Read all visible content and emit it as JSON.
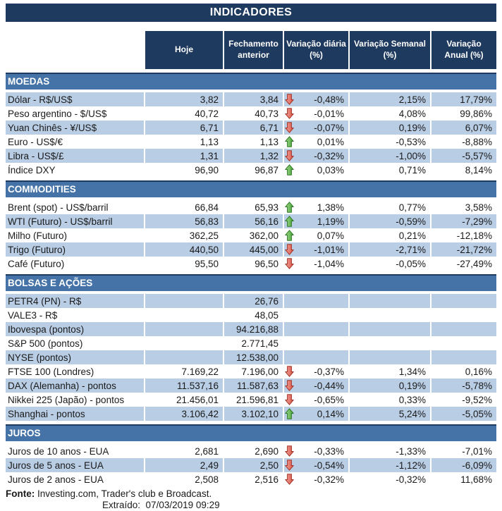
{
  "title": "INDICADORES",
  "header": {
    "labels": [
      {
        "lines": [
          "Hoje"
        ]
      },
      {
        "lines": [
          "Fechamento",
          "anterior"
        ]
      },
      {
        "lines": [
          "Variação diária",
          "(%)"
        ]
      },
      {
        "lines": [
          "Variação Semanal",
          "(%)"
        ]
      },
      {
        "lines": [
          "Variação",
          "Anual (%)"
        ]
      }
    ]
  },
  "colors": {
    "navy": "#1F3A5F",
    "section_blue": "#4573A7",
    "row_shade": "#B9CDE5",
    "text": "#1A1A1A",
    "arrow_up_light": "#A9DB92",
    "arrow_up_dark": "#3FA032",
    "arrow_up_stroke": "#2E7A26",
    "arrow_down_light": "#F2A79B",
    "arrow_down_dark": "#D85045",
    "arrow_down_stroke": "#A23528"
  },
  "sections": [
    {
      "id": "moedas",
      "name": "MOEDAS",
      "rows": [
        {
          "label": "Dólar - R$/US$",
          "hoje": "3,82",
          "fechamento": "3,84",
          "arrow": "down",
          "diaria": "-0,48%",
          "semanal": "2,15%",
          "anual": "17,79%",
          "shaded": true
        },
        {
          "label": "Peso argentino - $/US$",
          "hoje": "40,72",
          "fechamento": "40,73",
          "arrow": "down",
          "diaria": "-0,01%",
          "semanal": "4,08%",
          "anual": "99,86%",
          "shaded": false
        },
        {
          "label": "Yuan Chinês - ¥/US$",
          "hoje": "6,71",
          "fechamento": "6,71",
          "arrow": "down",
          "diaria": "-0,07%",
          "semanal": "0,19%",
          "anual": "6,07%",
          "shaded": true
        },
        {
          "label": "Euro - US$/€",
          "hoje": "1,13",
          "fechamento": "1,13",
          "arrow": "up",
          "diaria": "0,01%",
          "semanal": "-0,53%",
          "anual": "-8,88%",
          "shaded": false
        },
        {
          "label": "Libra - US$/£",
          "hoje": "1,31",
          "fechamento": "1,32",
          "arrow": "down",
          "diaria": "-0,32%",
          "semanal": "-1,00%",
          "anual": "-5,57%",
          "shaded": true
        },
        {
          "label": "Índice DXY",
          "hoje": "96,90",
          "fechamento": "96,87",
          "arrow": "up",
          "diaria": "0,03%",
          "semanal": "0,71%",
          "anual": "8,14%",
          "shaded": false
        }
      ]
    },
    {
      "id": "commodities",
      "name": "COMMODITIES",
      "rows": [
        {
          "label": "Brent (spot) - US$/barril",
          "hoje": "66,84",
          "fechamento": "65,93",
          "arrow": "up",
          "diaria": "1,38%",
          "semanal": "0,77%",
          "anual": "3,58%",
          "shaded": false
        },
        {
          "label": "WTI (Futuro) - US$/barril",
          "hoje": "56,83",
          "fechamento": "56,16",
          "arrow": "up",
          "diaria": "1,19%",
          "semanal": "-0,59%",
          "anual": "-7,29%",
          "shaded": true
        },
        {
          "label": "Milho (Futuro)",
          "hoje": "362,25",
          "fechamento": "362,00",
          "arrow": "up",
          "diaria": "0,07%",
          "semanal": "0,21%",
          "anual": "-12,18%",
          "shaded": false
        },
        {
          "label": "Trigo (Futuro)",
          "hoje": "440,50",
          "fechamento": "445,00",
          "arrow": "down",
          "diaria": "-1,01%",
          "semanal": "-2,71%",
          "anual": "-21,72%",
          "shaded": true
        },
        {
          "label": "Café (Futuro)",
          "hoje": "95,50",
          "fechamento": "96,50",
          "arrow": "down",
          "diaria": "-1,04%",
          "semanal": "-0,05%",
          "anual": "-27,49%",
          "shaded": false
        }
      ]
    },
    {
      "id": "bolsas-e-acoes",
      "name": "BOLSAS E AÇÕES",
      "rows": [
        {
          "label": "PETR4 (PN) - R$",
          "hoje": "",
          "fechamento": "26,76",
          "arrow": null,
          "diaria": "",
          "semanal": "",
          "anual": "",
          "shaded": true
        },
        {
          "label": "VALE3 - R$",
          "hoje": "",
          "fechamento": "48,05",
          "arrow": null,
          "diaria": "",
          "semanal": "",
          "anual": "",
          "shaded": false
        },
        {
          "label": "Ibovespa (pontos)",
          "hoje": "",
          "fechamento": "94.216,88",
          "arrow": null,
          "diaria": "",
          "semanal": "",
          "anual": "",
          "shaded": true
        },
        {
          "label": "S&P 500 (pontos)",
          "hoje": "",
          "fechamento": "2.771,45",
          "arrow": null,
          "diaria": "",
          "semanal": "",
          "anual": "",
          "shaded": false
        },
        {
          "label": "NYSE (pontos)",
          "hoje": "",
          "fechamento": "12.538,00",
          "arrow": null,
          "diaria": "",
          "semanal": "",
          "anual": "",
          "shaded": true
        },
        {
          "label": "FTSE 100 (Londres)",
          "hoje": "7.169,22",
          "fechamento": "7.196,00",
          "arrow": "down",
          "diaria": "-0,37%",
          "semanal": "1,34%",
          "anual": "0,16%",
          "shaded": false
        },
        {
          "label": "DAX (Alemanha) - pontos",
          "hoje": "11.537,16",
          "fechamento": "11.587,63",
          "arrow": "down",
          "diaria": "-0,44%",
          "semanal": "0,19%",
          "anual": "-5,78%",
          "shaded": true
        },
        {
          "label": "Nikkei 225 (Japão) - pontos",
          "hoje": "21.456,01",
          "fechamento": "21.596,81",
          "arrow": "down",
          "diaria": "-0,65%",
          "semanal": "0,33%",
          "anual": "-9,52%",
          "shaded": false
        },
        {
          "label": "Shanghai - pontos",
          "hoje": "3.106,42",
          "fechamento": "3.102,10",
          "arrow": "up",
          "diaria": "0,14%",
          "semanal": "5,24%",
          "anual": "-5,05%",
          "shaded": true
        }
      ]
    },
    {
      "id": "juros",
      "name": "JUROS",
      "rows": [
        {
          "label": "Juros de 10 anos - EUA",
          "hoje": "2,681",
          "fechamento": "2,690",
          "arrow": "down",
          "diaria": "-0,33%",
          "semanal": "-1,33%",
          "anual": "-7,01%",
          "shaded": false
        },
        {
          "label": "Juros de 5 anos - EUA",
          "hoje": "2,49",
          "fechamento": "2,50",
          "arrow": "down",
          "diaria": "-0,54%",
          "semanal": "-1,12%",
          "anual": "-6,09%",
          "shaded": true
        },
        {
          "label": "Juros de 2 anos - EUA",
          "hoje": "2,508",
          "fechamento": "2,516",
          "arrow": "down",
          "diaria": "-0,32%",
          "semanal": "-0,32%",
          "anual": "11,68%",
          "shaded": false
        }
      ]
    }
  ],
  "footer": {
    "fonte_label": "Fonte:",
    "fonte_text": " Investing.com, Trader's club e Broadcast.",
    "extraido_label": "Extraído:",
    "extraido_value": "07/03/2019 09:29"
  }
}
